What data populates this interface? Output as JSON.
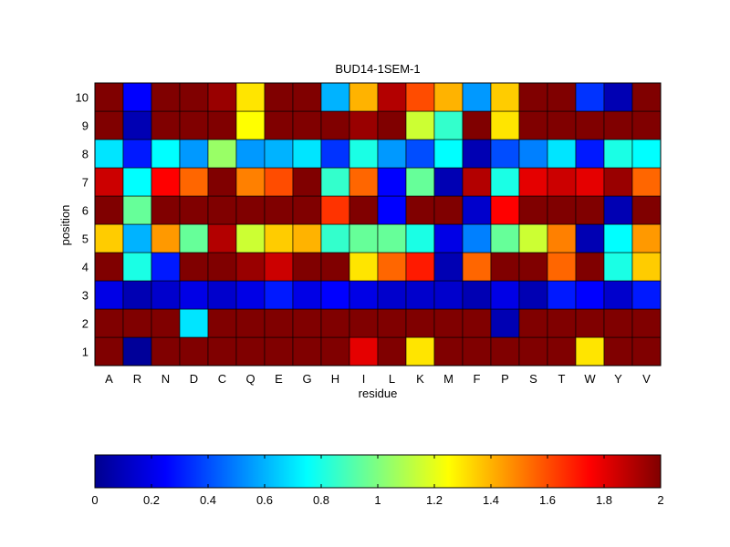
{
  "chart_data": {
    "type": "heatmap",
    "title": "BUD14-1SEM-1",
    "xlabel": "residue",
    "ylabel": "position",
    "x_categories": [
      "A",
      "R",
      "N",
      "D",
      "C",
      "Q",
      "E",
      "G",
      "H",
      "I",
      "L",
      "K",
      "M",
      "F",
      "P",
      "S",
      "T",
      "W",
      "Y",
      "V"
    ],
    "y_categories": [
      "1",
      "2",
      "3",
      "4",
      "5",
      "6",
      "7",
      "8",
      "9",
      "10"
    ],
    "values": [
      [
        2.0,
        0.05,
        2.0,
        2.0,
        2.0,
        2.0,
        2.0,
        2.0,
        2.0,
        1.8,
        2.0,
        1.3,
        2.0,
        2.0,
        2.0,
        2.0,
        2.0,
        1.3,
        2.0,
        2.0
      ],
      [
        2.0,
        2.0,
        2.0,
        0.7,
        2.0,
        2.0,
        2.0,
        2.0,
        2.0,
        2.0,
        2.0,
        2.0,
        2.0,
        2.0,
        0.1,
        2.0,
        2.0,
        2.0,
        2.0,
        2.0
      ],
      [
        0.2,
        0.1,
        0.15,
        0.2,
        0.15,
        0.2,
        0.3,
        0.2,
        0.25,
        0.2,
        0.15,
        0.15,
        0.15,
        0.1,
        0.2,
        0.1,
        0.3,
        0.25,
        0.15,
        0.3
      ],
      [
        2.0,
        0.8,
        0.3,
        2.0,
        2.0,
        1.95,
        1.85,
        2.0,
        2.0,
        1.3,
        1.55,
        1.7,
        0.1,
        1.55,
        2.0,
        2.0,
        1.55,
        2.0,
        0.8,
        1.35
      ],
      [
        1.35,
        0.6,
        1.45,
        0.95,
        1.9,
        1.15,
        1.35,
        1.4,
        0.85,
        0.95,
        0.95,
        0.8,
        0.2,
        0.5,
        0.95,
        1.15,
        1.5,
        0.1,
        0.75,
        1.45
      ],
      [
        2.0,
        0.95,
        2.0,
        2.0,
        2.0,
        2.0,
        2.0,
        2.0,
        1.65,
        2.0,
        0.25,
        2.0,
        2.0,
        0.15,
        1.75,
        2.0,
        2.0,
        2.0,
        0.1,
        2.0
      ],
      [
        1.85,
        0.75,
        1.75,
        1.55,
        2.0,
        1.5,
        1.6,
        2.0,
        0.85,
        1.55,
        0.25,
        0.95,
        0.1,
        1.9,
        0.8,
        1.8,
        1.85,
        1.8,
        1.95,
        1.55
      ],
      [
        0.7,
        0.3,
        0.75,
        0.55,
        1.05,
        0.55,
        0.6,
        0.7,
        0.35,
        0.8,
        0.55,
        0.4,
        0.75,
        0.1,
        0.4,
        0.5,
        0.7,
        0.3,
        0.8,
        0.75
      ],
      [
        2.0,
        0.1,
        2.0,
        2.0,
        2.0,
        1.25,
        2.0,
        2.0,
        2.0,
        1.95,
        2.0,
        1.15,
        0.85,
        2.0,
        1.3,
        2.0,
        2.0,
        2.0,
        2.0,
        2.0
      ],
      [
        2.0,
        0.25,
        2.0,
        2.0,
        1.95,
        1.3,
        2.0,
        2.0,
        0.6,
        1.4,
        1.9,
        1.6,
        1.4,
        0.55,
        1.35,
        2.0,
        2.0,
        0.35,
        0.1,
        2.0
      ]
    ],
    "colorbar": {
      "colormap": "jet",
      "range": [
        0,
        2
      ],
      "ticks": [
        "0",
        "0.2",
        "0.4",
        "0.6",
        "0.8",
        "1",
        "1.2",
        "1.4",
        "1.6",
        "1.8",
        "2"
      ],
      "orientation": "horizontal",
      "placement": "bottom"
    }
  }
}
